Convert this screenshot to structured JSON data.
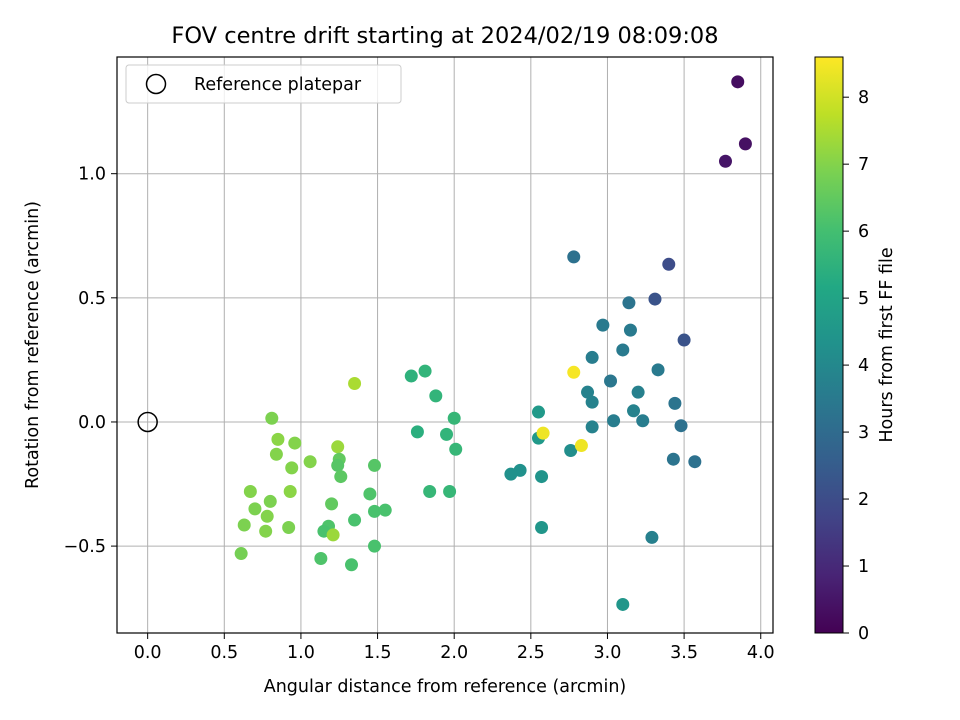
{
  "chart_data": {
    "type": "scatter",
    "title": "FOV centre drift starting at 2024/02/19 08:09:08",
    "xlabel": "Angular distance from reference (arcmin)",
    "ylabel": "Rotation from reference (arcmin)",
    "xlim": [
      -0.2,
      4.08
    ],
    "ylim": [
      -0.85,
      1.47
    ],
    "xticks": [
      0.0,
      0.5,
      1.0,
      1.5,
      2.0,
      2.5,
      3.0,
      3.5,
      4.0
    ],
    "xtick_labels": [
      "0.0",
      "0.5",
      "1.0",
      "1.5",
      "2.0",
      "2.5",
      "3.0",
      "3.5",
      "4.0"
    ],
    "yticks": [
      -0.5,
      0.0,
      0.5,
      1.0
    ],
    "ytick_labels": [
      "−0.5",
      "0.0",
      "0.5",
      "1.0"
    ],
    "grid": true,
    "legend": {
      "placement": "top-left",
      "entries": [
        "Reference platepar"
      ]
    },
    "reference_point": {
      "x": 0.0,
      "y": 0.0
    },
    "colorbar": {
      "label": "Hours from first FF file",
      "colormap": "viridis",
      "range": [
        0,
        8.6
      ],
      "ticks": [
        0,
        1,
        2,
        3,
        4,
        5,
        6,
        7,
        8
      ],
      "tick_labels": [
        "0",
        "1",
        "2",
        "3",
        "4",
        "5",
        "6",
        "7",
        "8"
      ]
    },
    "points": [
      {
        "x": 3.85,
        "y": 1.37,
        "h": 0.3
      },
      {
        "x": 3.9,
        "y": 1.12,
        "h": 0.4
      },
      {
        "x": 3.77,
        "y": 1.05,
        "h": 0.5
      },
      {
        "x": 3.4,
        "y": 0.635,
        "h": 2.0
      },
      {
        "x": 3.31,
        "y": 0.495,
        "h": 2.2
      },
      {
        "x": 3.5,
        "y": 0.33,
        "h": 2.2
      },
      {
        "x": 2.78,
        "y": 0.665,
        "h": 3.2
      },
      {
        "x": 3.14,
        "y": 0.48,
        "h": 3.3
      },
      {
        "x": 2.97,
        "y": 0.39,
        "h": 3.5
      },
      {
        "x": 3.15,
        "y": 0.37,
        "h": 3.5
      },
      {
        "x": 3.1,
        "y": 0.29,
        "h": 3.5
      },
      {
        "x": 2.9,
        "y": 0.26,
        "h": 3.6
      },
      {
        "x": 3.33,
        "y": 0.21,
        "h": 3.5
      },
      {
        "x": 3.02,
        "y": 0.165,
        "h": 3.4
      },
      {
        "x": 3.2,
        "y": 0.12,
        "h": 3.7
      },
      {
        "x": 2.87,
        "y": 0.12,
        "h": 3.8
      },
      {
        "x": 2.9,
        "y": 0.08,
        "h": 3.8
      },
      {
        "x": 3.44,
        "y": 0.075,
        "h": 3.3
      },
      {
        "x": 3.17,
        "y": 0.045,
        "h": 3.8
      },
      {
        "x": 3.04,
        "y": 0.005,
        "h": 3.6
      },
      {
        "x": 3.23,
        "y": 0.005,
        "h": 3.6
      },
      {
        "x": 2.9,
        "y": -0.02,
        "h": 3.8
      },
      {
        "x": 3.48,
        "y": -0.015,
        "h": 3.2
      },
      {
        "x": 3.43,
        "y": -0.15,
        "h": 3.3
      },
      {
        "x": 3.57,
        "y": -0.16,
        "h": 3.2
      },
      {
        "x": 3.29,
        "y": -0.465,
        "h": 3.7
      },
      {
        "x": 3.1,
        "y": -0.735,
        "h": 4.5
      },
      {
        "x": 2.55,
        "y": 0.04,
        "h": 4.6
      },
      {
        "x": 2.55,
        "y": -0.065,
        "h": 4.6
      },
      {
        "x": 2.76,
        "y": -0.115,
        "h": 4.2
      },
      {
        "x": 2.43,
        "y": -0.195,
        "h": 4.3
      },
      {
        "x": 2.37,
        "y": -0.21,
        "h": 4.3
      },
      {
        "x": 2.57,
        "y": -0.22,
        "h": 4.4
      },
      {
        "x": 2.57,
        "y": -0.425,
        "h": 4.5
      },
      {
        "x": 2.78,
        "y": 0.2,
        "h": 8.5
      },
      {
        "x": 2.58,
        "y": -0.045,
        "h": 8.4
      },
      {
        "x": 2.83,
        "y": -0.095,
        "h": 8.4
      },
      {
        "x": 1.72,
        "y": 0.185,
        "h": 5.5
      },
      {
        "x": 1.81,
        "y": 0.205,
        "h": 5.6
      },
      {
        "x": 1.88,
        "y": 0.105,
        "h": 5.6
      },
      {
        "x": 2.0,
        "y": 0.015,
        "h": 5.7
      },
      {
        "x": 1.76,
        "y": -0.04,
        "h": 5.4
      },
      {
        "x": 1.95,
        "y": -0.05,
        "h": 5.6
      },
      {
        "x": 2.01,
        "y": -0.11,
        "h": 5.7
      },
      {
        "x": 1.84,
        "y": -0.28,
        "h": 5.7
      },
      {
        "x": 1.97,
        "y": -0.28,
        "h": 5.7
      },
      {
        "x": 1.35,
        "y": 0.155,
        "h": 7.5
      },
      {
        "x": 1.24,
        "y": -0.1,
        "h": 7.3
      },
      {
        "x": 1.25,
        "y": -0.15,
        "h": 6.5
      },
      {
        "x": 1.24,
        "y": -0.175,
        "h": 6.3
      },
      {
        "x": 1.26,
        "y": -0.22,
        "h": 6.4
      },
      {
        "x": 1.48,
        "y": -0.175,
        "h": 6.3
      },
      {
        "x": 1.45,
        "y": -0.29,
        "h": 6.2
      },
      {
        "x": 1.2,
        "y": -0.33,
        "h": 6.5
      },
      {
        "x": 1.48,
        "y": -0.36,
        "h": 6.1
      },
      {
        "x": 1.55,
        "y": -0.355,
        "h": 6.1
      },
      {
        "x": 1.35,
        "y": -0.395,
        "h": 6.1
      },
      {
        "x": 1.18,
        "y": -0.42,
        "h": 6.2
      },
      {
        "x": 1.15,
        "y": -0.44,
        "h": 6.1
      },
      {
        "x": 1.21,
        "y": -0.455,
        "h": 7.3
      },
      {
        "x": 1.48,
        "y": -0.5,
        "h": 6.1
      },
      {
        "x": 1.13,
        "y": -0.55,
        "h": 6.2
      },
      {
        "x": 1.33,
        "y": -0.575,
        "h": 6.1
      },
      {
        "x": 1.06,
        "y": -0.16,
        "h": 7.0
      },
      {
        "x": 0.81,
        "y": 0.015,
        "h": 6.9
      },
      {
        "x": 0.85,
        "y": -0.07,
        "h": 7.1
      },
      {
        "x": 0.96,
        "y": -0.085,
        "h": 7.0
      },
      {
        "x": 0.84,
        "y": -0.13,
        "h": 7.0
      },
      {
        "x": 0.94,
        "y": -0.185,
        "h": 7.0
      },
      {
        "x": 0.67,
        "y": -0.28,
        "h": 7.0
      },
      {
        "x": 0.93,
        "y": -0.28,
        "h": 7.1
      },
      {
        "x": 0.8,
        "y": -0.32,
        "h": 6.9
      },
      {
        "x": 0.7,
        "y": -0.35,
        "h": 6.9
      },
      {
        "x": 0.78,
        "y": -0.38,
        "h": 7.0
      },
      {
        "x": 0.63,
        "y": -0.415,
        "h": 6.9
      },
      {
        "x": 0.92,
        "y": -0.425,
        "h": 6.9
      },
      {
        "x": 0.77,
        "y": -0.44,
        "h": 7.0
      },
      {
        "x": 0.61,
        "y": -0.53,
        "h": 6.8
      }
    ]
  }
}
